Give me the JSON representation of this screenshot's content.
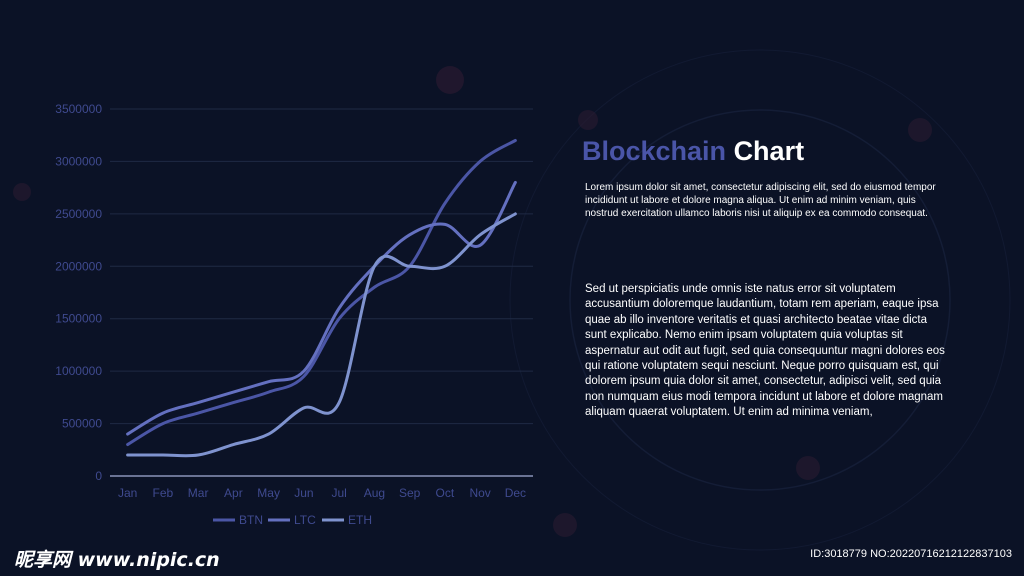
{
  "slide": {
    "title_accent": "Blockchain",
    "title_rest": "Chart",
    "paragraph1": "Lorem ipsum dolor sit amet, consectetur adipiscing elit, sed do eiusmod tempor incididunt ut labore et dolore magna aliqua. Ut enim ad minim veniam, quis nostrud exercitation ullamco laboris nisi ut aliquip ex ea commodo consequat.",
    "paragraph2": "Sed ut perspiciatis unde omnis iste natus error sit voluptatem accusantium doloremque laudantium, totam rem aperiam, eaque ipsa quae ab illo inventore veritatis et quasi architecto beatae vitae dicta sunt explicabo. Nemo enim ipsam voluptatem quia voluptas sit aspernatur aut odit aut fugit, sed quia consequuntur magni dolores eos qui ratione voluptatem sequi nesciunt. Neque porro quisquam est, qui dolorem ipsum quia dolor sit amet, consectetur, adipisci velit, sed quia non numquam eius modi tempora incidunt ut labore et dolore magnam aliquam quaerat voluptatem. Ut enim ad minima veniam,"
  },
  "watermark": {
    "left": "昵享网 www.nipic.cn",
    "right": "ID:3018779 NO:20220716212122837103"
  },
  "colors": {
    "background": "#0b1226",
    "title_accent": "#4a55a8",
    "axis_text": "#3f4a8f",
    "grid": "#1f2a44"
  },
  "chart_data": {
    "type": "line",
    "categories": [
      "Jan",
      "Feb",
      "Mar",
      "Apr",
      "May",
      "Jun",
      "Jul",
      "Aug",
      "Sep",
      "Oct",
      "Nov",
      "Dec"
    ],
    "ylim": [
      0,
      3500000
    ],
    "yticks": [
      "0",
      "500000",
      "1000000",
      "1500000",
      "2000000",
      "2500000",
      "3000000",
      "3500000"
    ],
    "grid": true,
    "legend_position": "bottom",
    "series": [
      {
        "name": "BTN",
        "color": "#4b56a6",
        "values": [
          300000,
          500000,
          600000,
          700000,
          800000,
          950000,
          1500000,
          1800000,
          2000000,
          2600000,
          3000000,
          3200000
        ]
      },
      {
        "name": "LTC",
        "color": "#6470c0",
        "values": [
          400000,
          600000,
          700000,
          800000,
          900000,
          1000000,
          1600000,
          2000000,
          2300000,
          2400000,
          2200000,
          2800000
        ]
      },
      {
        "name": "ETH",
        "color": "#7f93cf",
        "values": [
          200000,
          200000,
          200000,
          300000,
          400000,
          650000,
          700000,
          2000000,
          2000000,
          2000000,
          2300000,
          2500000
        ]
      }
    ]
  }
}
